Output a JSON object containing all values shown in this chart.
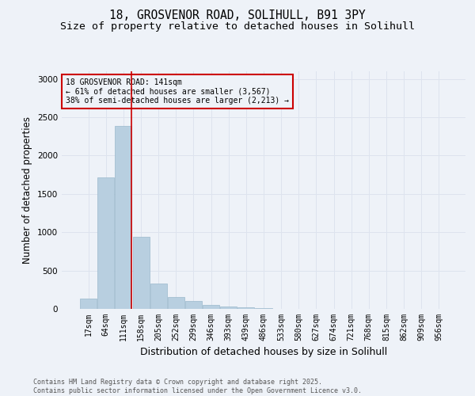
{
  "title_line1": "18, GROSVENOR ROAD, SOLIHULL, B91 3PY",
  "title_line2": "Size of property relative to detached houses in Solihull",
  "xlabel": "Distribution of detached houses by size in Solihull",
  "ylabel": "Number of detached properties",
  "footer_line1": "Contains HM Land Registry data © Crown copyright and database right 2025.",
  "footer_line2": "Contains public sector information licensed under the Open Government Licence v3.0.",
  "bin_labels": [
    "17sqm",
    "64sqm",
    "111sqm",
    "158sqm",
    "205sqm",
    "252sqm",
    "299sqm",
    "346sqm",
    "393sqm",
    "439sqm",
    "486sqm",
    "533sqm",
    "580sqm",
    "627sqm",
    "674sqm",
    "721sqm",
    "768sqm",
    "815sqm",
    "862sqm",
    "909sqm",
    "956sqm"
  ],
  "bar_values": [
    130,
    1720,
    2390,
    940,
    330,
    155,
    100,
    55,
    30,
    18,
    8,
    3,
    0,
    0,
    0,
    0,
    0,
    0,
    0,
    0,
    0
  ],
  "bar_color": "#b8cfe0",
  "bar_edge_color": "#9ab8cc",
  "grid_color": "#dde3ee",
  "background_color": "#eef2f8",
  "annotation_box_color": "#cc0000",
  "property_line_color": "#cc0000",
  "property_line_bin": 2,
  "annotation_title": "18 GROSVENOR ROAD: 141sqm",
  "annotation_line1": "← 61% of detached houses are smaller (3,567)",
  "annotation_line2": "38% of semi-detached houses are larger (2,213) →",
  "ylim": [
    0,
    3100
  ],
  "yticks": [
    0,
    500,
    1000,
    1500,
    2000,
    2500,
    3000
  ],
  "title_fontsize": 10.5,
  "subtitle_fontsize": 9.5,
  "axis_label_fontsize": 8.5,
  "tick_fontsize": 7,
  "annotation_fontsize": 7,
  "footer_fontsize": 6
}
